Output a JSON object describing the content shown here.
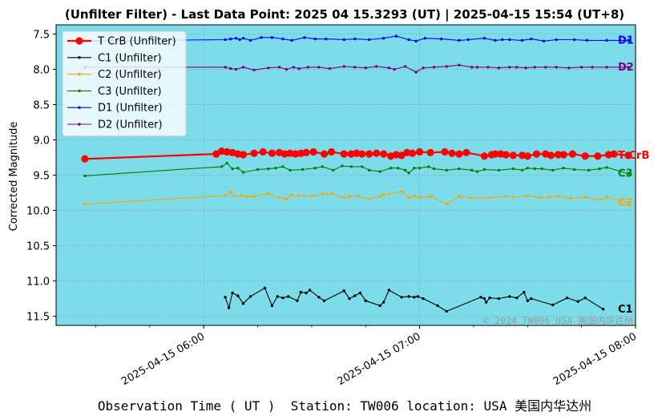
{
  "chart_data": {
    "type": "line",
    "title": "(Unfilter Filter) - Last Data Point: 2025 04 15.3293 (UT) | 2025-04-15 15:54 (UT+8)",
    "xlabel": "Observation Time ( UT )  Station: TW006 location: USA 美国内华达州",
    "ylabel": "Corrected Magnitude",
    "x_unit": "minutes after 2025-04-15 05:00 UT",
    "xlim": [
      19,
      180
    ],
    "ylim": [
      11.63,
      7.37
    ],
    "y_inverted": true,
    "grid": true,
    "legend_position": "top-left",
    "xticks": [
      {
        "label": "2025-04-15 06:00",
        "x": 60
      },
      {
        "label": "2025-04-15 07:00",
        "x": 120
      },
      {
        "label": "2025-04-15 08:00",
        "x": 180
      }
    ],
    "yticks": [
      {
        "label": "7.5",
        "value": 7.5
      },
      {
        "label": "8.0",
        "value": 8.0
      },
      {
        "label": "8.5",
        "value": 8.5
      },
      {
        "label": "9.0",
        "value": 9.0
      },
      {
        "label": "9.5",
        "value": 9.5
      },
      {
        "label": "10.0",
        "value": 10.0
      },
      {
        "label": "10.5",
        "value": 10.5
      },
      {
        "label": "11.0",
        "value": 11.0
      },
      {
        "label": "11.5",
        "value": 11.5
      }
    ],
    "series": [
      {
        "name": "T CrB (Unfilter)",
        "label": "T CrB",
        "color": "#ff0000",
        "marker": "big",
        "width": 2.2,
        "x": [
          27,
          63.5,
          65,
          66.5,
          68,
          69.5,
          71,
          74,
          76.5,
          79,
          81,
          82.5,
          84,
          85.5,
          87,
          88.5,
          90.5,
          93.5,
          95.5,
          99,
          101,
          102.5,
          104,
          106,
          108,
          110,
          112,
          113.5,
          115,
          116.5,
          118,
          120,
          123,
          127,
          129,
          131,
          133,
          138,
          140,
          141,
          142.5,
          144,
          146,
          148.5,
          150,
          152.5,
          155,
          156.5,
          158.5,
          160,
          162.5,
          166,
          169.5,
          172.5,
          174,
          178
        ],
        "y": [
          9.27,
          9.2,
          9.16,
          9.17,
          9.18,
          9.2,
          9.21,
          9.19,
          9.17,
          9.19,
          9.18,
          9.2,
          9.19,
          9.2,
          9.19,
          9.18,
          9.17,
          9.2,
          9.17,
          9.2,
          9.2,
          9.19,
          9.2,
          9.2,
          9.19,
          9.2,
          9.23,
          9.21,
          9.22,
          9.18,
          9.19,
          9.17,
          9.18,
          9.17,
          9.19,
          9.2,
          9.18,
          9.23,
          9.21,
          9.2,
          9.2,
          9.21,
          9.22,
          9.22,
          9.23,
          9.2,
          9.2,
          9.22,
          9.21,
          9.21,
          9.2,
          9.23,
          9.23,
          9.21,
          9.2,
          9.22
        ]
      },
      {
        "name": "C1 (Unfilter)",
        "label": "C1",
        "color": "#000000",
        "marker": "small",
        "width": 1.1,
        "x": [
          66,
          67,
          68,
          69.5,
          71,
          73,
          77,
          79,
          80.5,
          82,
          83.5,
          86,
          87,
          88.5,
          89.5,
          92,
          93.5,
          99,
          100.5,
          102,
          103.5,
          105,
          109,
          110,
          111.5,
          115,
          117,
          118.5,
          119.5,
          121,
          125,
          127.5,
          137,
          138,
          138.5,
          139.5,
          142,
          145,
          147,
          149,
          150,
          151,
          157,
          161,
          164,
          166,
          171
        ],
        "y": [
          11.23,
          11.38,
          11.17,
          11.21,
          11.32,
          11.22,
          11.1,
          11.35,
          11.22,
          11.24,
          11.22,
          11.28,
          11.16,
          11.17,
          11.13,
          11.23,
          11.28,
          11.14,
          11.25,
          11.21,
          11.17,
          11.28,
          11.35,
          11.3,
          11.13,
          11.23,
          11.22,
          11.23,
          11.22,
          11.25,
          11.35,
          11.43,
          11.23,
          11.25,
          11.3,
          11.24,
          11.25,
          11.22,
          11.24,
          11.16,
          11.28,
          11.25,
          11.34,
          11.24,
          11.29,
          11.24,
          11.4
        ]
      },
      {
        "name": "C2 (Unfilter)",
        "label": "C2",
        "color": "#ffa500",
        "marker": "small",
        "width": 1.1,
        "x": [
          27,
          66,
          67.5,
          68.5,
          70.5,
          72,
          74,
          78,
          81,
          83,
          84.5,
          86.5,
          90,
          93,
          95.5,
          99,
          100.5,
          103,
          106,
          109,
          110,
          111.5,
          115,
          117,
          118.5,
          120,
          123,
          127.5,
          131,
          134.5,
          139.5,
          144,
          146,
          150,
          153.5,
          156,
          158.5,
          162,
          166,
          170,
          172,
          178
        ],
        "y": [
          9.91,
          9.79,
          9.74,
          9.8,
          9.79,
          9.81,
          9.8,
          9.76,
          9.82,
          9.84,
          9.78,
          9.79,
          9.8,
          9.77,
          9.76,
          9.82,
          9.8,
          9.8,
          9.84,
          9.8,
          9.78,
          9.77,
          9.73,
          9.82,
          9.8,
          9.82,
          9.8,
          9.91,
          9.8,
          9.82,
          9.82,
          9.8,
          9.81,
          9.79,
          9.82,
          9.81,
          9.8,
          9.83,
          9.81,
          9.85,
          9.81,
          9.89
        ]
      },
      {
        "name": "C3 (Unfilter)",
        "label": "C3",
        "color": "#008000",
        "marker": "small",
        "width": 1.1,
        "x": [
          27,
          65,
          66.5,
          68,
          69.5,
          71,
          75,
          78,
          80,
          82,
          84,
          87.5,
          91,
          93,
          96,
          98.5,
          101,
          104,
          106,
          109,
          112,
          114,
          116,
          117,
          118.5,
          120,
          122.5,
          124,
          127.5,
          131,
          134.5,
          136,
          138,
          142,
          146,
          148.5,
          150,
          152,
          154,
          157,
          160,
          163,
          167,
          170,
          172,
          178
        ],
        "y": [
          9.51,
          9.38,
          9.33,
          9.41,
          9.4,
          9.46,
          9.42,
          9.41,
          9.4,
          9.38,
          9.43,
          9.42,
          9.4,
          9.38,
          9.43,
          9.37,
          9.38,
          9.38,
          9.43,
          9.45,
          9.4,
          9.4,
          9.43,
          9.47,
          9.4,
          9.4,
          9.38,
          9.41,
          9.43,
          9.41,
          9.43,
          9.45,
          9.42,
          9.43,
          9.41,
          9.43,
          9.4,
          9.41,
          9.41,
          9.43,
          9.4,
          9.42,
          9.43,
          9.41,
          9.39,
          9.48
        ]
      },
      {
        "name": "D1 (Unfilter)",
        "label": "D1",
        "color": "#0000ff",
        "marker": "small",
        "width": 1.1,
        "x": [
          27,
          66,
          67.5,
          69,
          70,
          71,
          73,
          76,
          79,
          82,
          84.5,
          88,
          91,
          94,
          99,
          102,
          106,
          110,
          113.5,
          117,
          119,
          121.5,
          126,
          131,
          133.5,
          138,
          141,
          143,
          145,
          148.5,
          151,
          154.5,
          158,
          163,
          166.5,
          172,
          178
        ],
        "y": [
          7.6,
          7.58,
          7.57,
          7.56,
          7.58,
          7.56,
          7.59,
          7.55,
          7.55,
          7.57,
          7.59,
          7.55,
          7.57,
          7.57,
          7.58,
          7.57,
          7.58,
          7.56,
          7.53,
          7.58,
          7.6,
          7.56,
          7.57,
          7.59,
          7.58,
          7.56,
          7.59,
          7.58,
          7.58,
          7.59,
          7.57,
          7.6,
          7.58,
          7.58,
          7.59,
          7.59,
          7.59
        ]
      },
      {
        "name": "D2 (Unfilter)",
        "label": "D2",
        "color": "#800080",
        "marker": "small",
        "width": 1.1,
        "x": [
          27,
          66,
          67.5,
          69,
          71,
          74,
          78,
          81,
          83,
          85,
          86.5,
          89,
          92,
          95,
          99,
          102,
          105,
          108,
          111.5,
          113,
          116,
          119,
          121,
          124,
          127.5,
          131,
          134.5,
          136,
          139,
          142,
          145,
          147,
          149.5,
          152,
          155,
          158,
          161.5,
          165,
          168,
          172,
          178
        ],
        "y": [
          7.97,
          7.97,
          7.99,
          8.0,
          7.97,
          8.01,
          7.98,
          7.97,
          8.0,
          7.97,
          7.99,
          7.97,
          7.97,
          7.99,
          7.96,
          7.97,
          7.98,
          7.96,
          7.98,
          8.0,
          7.96,
          8.04,
          7.98,
          7.97,
          7.96,
          7.94,
          7.97,
          7.97,
          7.97,
          7.98,
          7.97,
          7.97,
          7.98,
          7.97,
          7.97,
          7.97,
          7.98,
          7.97,
          7.97,
          7.97,
          7.97
        ]
      }
    ]
  },
  "colors": {
    "plot_background": "#7ddcea",
    "grid": "#8aa4a8"
  },
  "watermark": "© 2024 TW006 USA 美国内华达州"
}
